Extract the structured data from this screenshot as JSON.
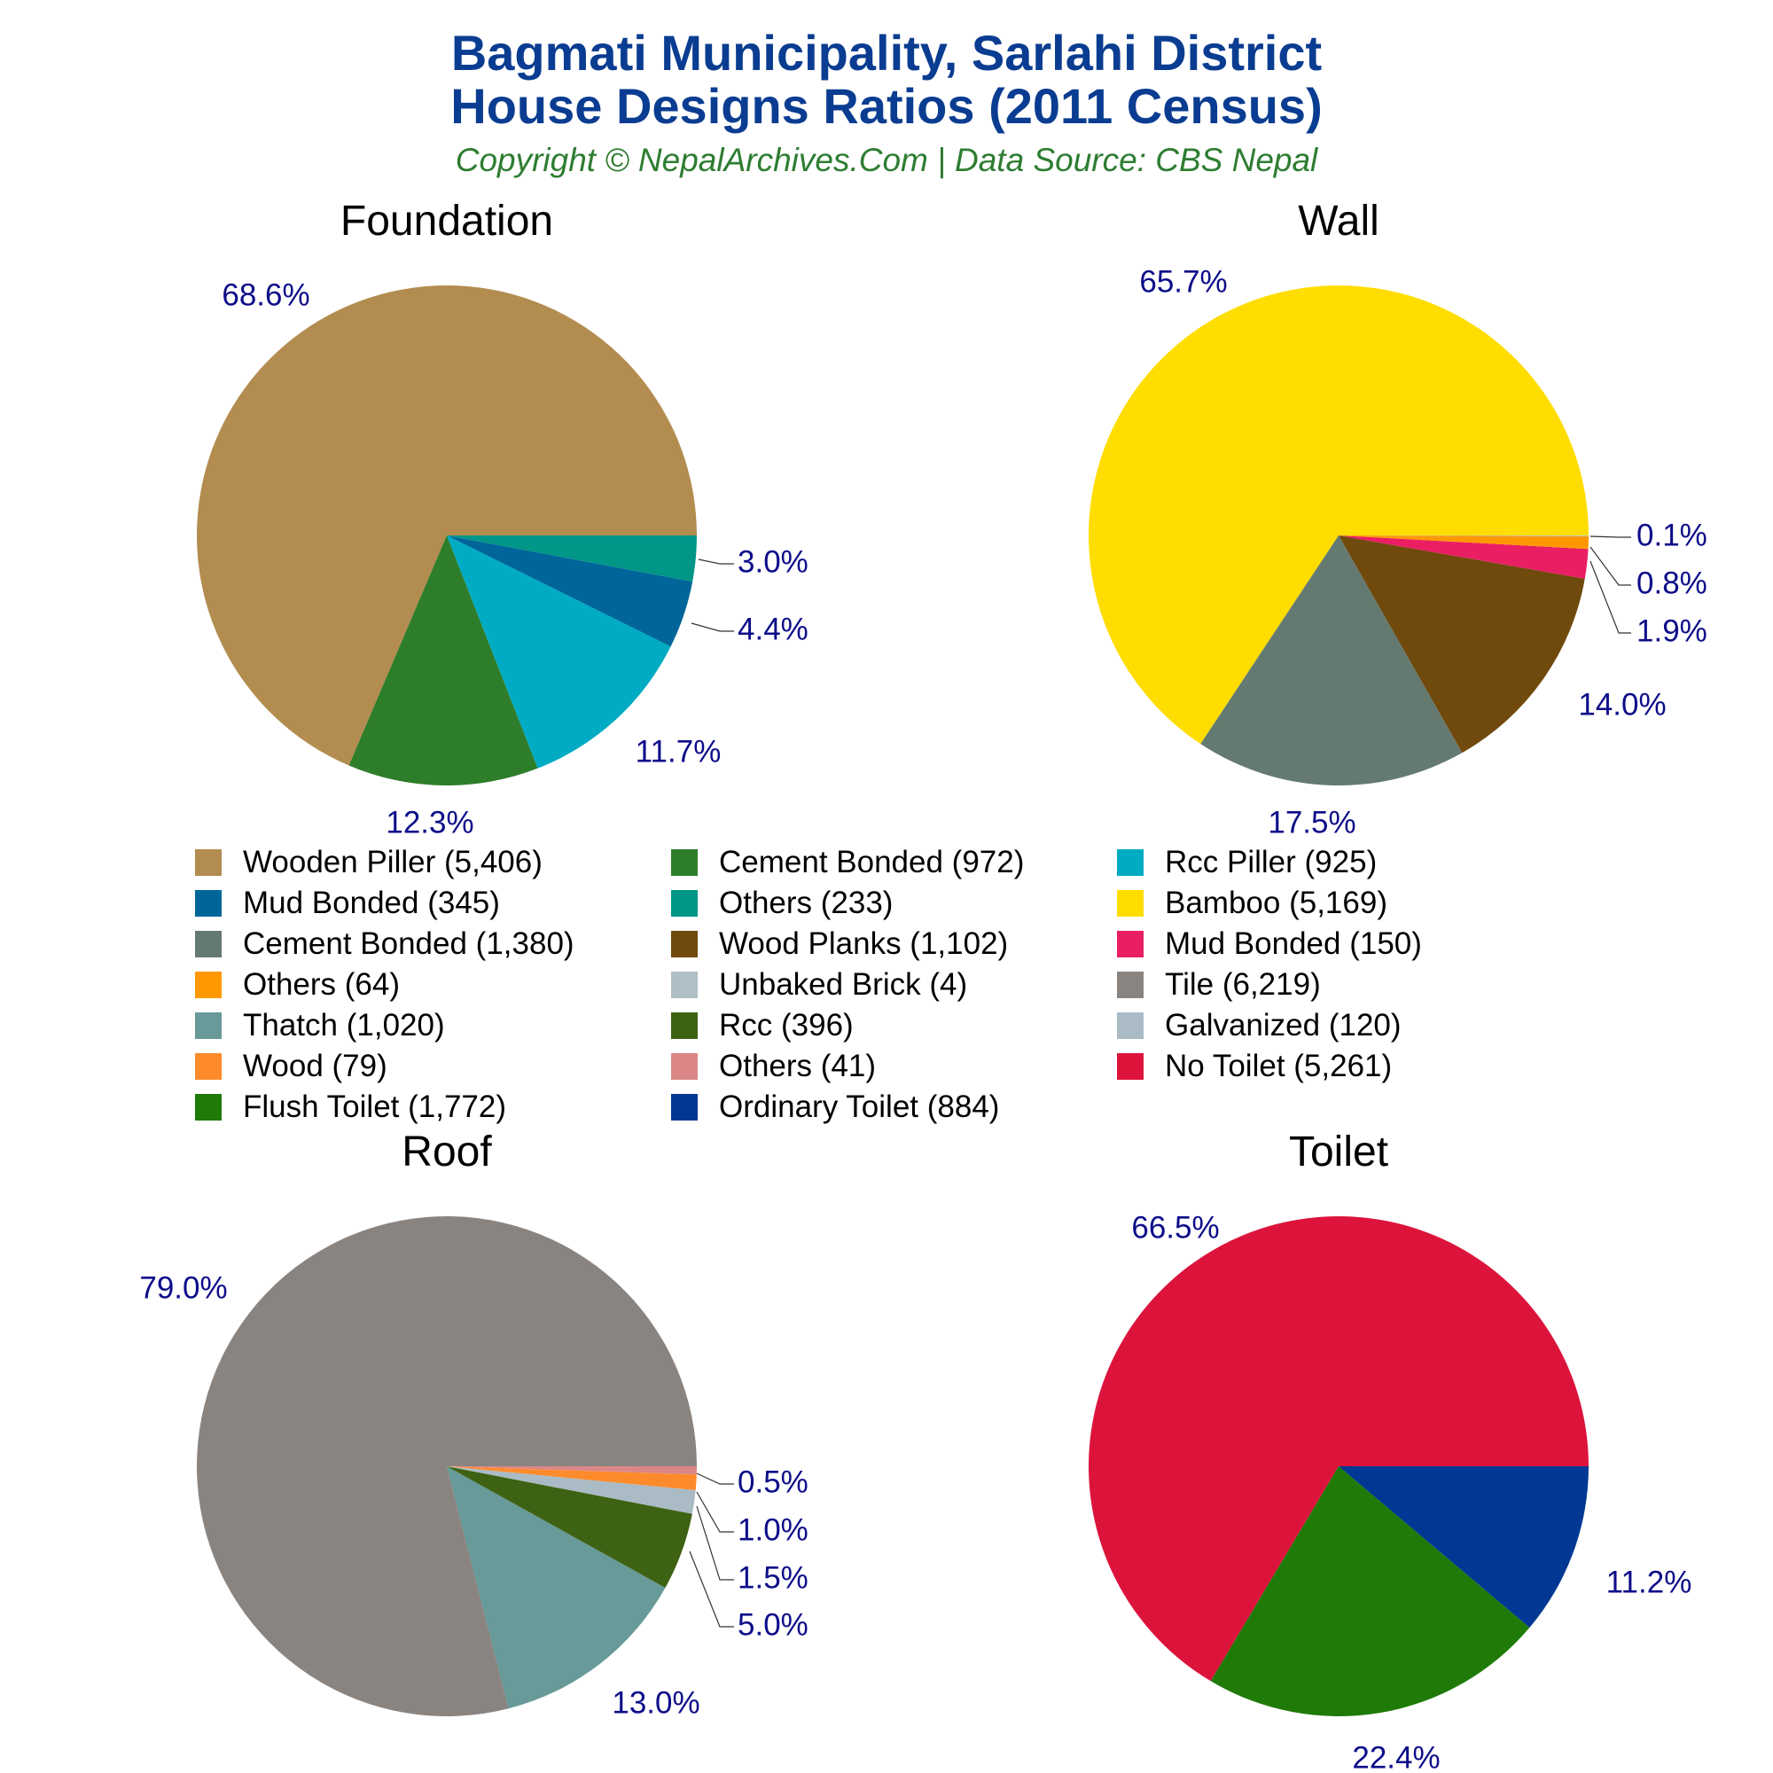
{
  "header": {
    "title_line1": "Bagmati Municipality, Sarlahi District",
    "title_line2": "House Designs Ratios (2011 Census)",
    "subtitle": "Copyright © NepalArchives.Com | Data Source: CBS Nepal",
    "title_color": "#0a3d91",
    "subtitle_color": "#2e7d32"
  },
  "label_color": "#0d0d8a",
  "chart_data": [
    {
      "type": "pie",
      "title": "Foundation",
      "slices": [
        {
          "label": "Wooden Piller",
          "value": 5406,
          "pct": "68.6%",
          "color": "#b38c50"
        },
        {
          "label": "Cement Bonded",
          "value": 972,
          "pct": "12.3%",
          "color": "#2e7d2a"
        },
        {
          "label": "Rcc Piller",
          "value": 925,
          "pct": "11.7%",
          "color": "#00abc3"
        },
        {
          "label": "Mud Bonded",
          "value": 345,
          "pct": "4.4%",
          "color": "#006699"
        },
        {
          "label": "Others",
          "value": 233,
          "pct": "3.0%",
          "color": "#009688"
        }
      ]
    },
    {
      "type": "pie",
      "title": "Wall",
      "slices": [
        {
          "label": "Bamboo",
          "value": 5169,
          "pct": "65.7%",
          "color": "#ffdd00"
        },
        {
          "label": "Cement Bonded",
          "value": 1380,
          "pct": "17.5%",
          "color": "#647a71"
        },
        {
          "label": "Wood Planks",
          "value": 1102,
          "pct": "14.0%",
          "color": "#70490c"
        },
        {
          "label": "Mud Bonded",
          "value": 150,
          "pct": "1.9%",
          "color": "#e91e63"
        },
        {
          "label": "Others",
          "value": 64,
          "pct": "0.8%",
          "color": "#ff9800"
        },
        {
          "label": "Unbaked Brick",
          "value": 4,
          "pct": "0.1%",
          "color": "#b0bec5"
        }
      ]
    },
    {
      "type": "pie",
      "title": "Roof",
      "slices": [
        {
          "label": "Tile",
          "value": 6219,
          "pct": "79.0%",
          "color": "#8a8480"
        },
        {
          "label": "Thatch",
          "value": 1020,
          "pct": "13.0%",
          "color": "#679a98"
        },
        {
          "label": "Rcc",
          "value": 396,
          "pct": "5.0%",
          "color": "#3e6213"
        },
        {
          "label": "Galvanized",
          "value": 120,
          "pct": "1.5%",
          "color": "#aabbc5"
        },
        {
          "label": "Wood",
          "value": 79,
          "pct": "1.0%",
          "color": "#fd8b2c"
        },
        {
          "label": "Others",
          "value": 41,
          "pct": "0.5%",
          "color": "#dc8787"
        }
      ]
    },
    {
      "type": "pie",
      "title": "Toilet",
      "slices": [
        {
          "label": "No Toilet",
          "value": 5261,
          "pct": "66.5%",
          "color": "#dc143c"
        },
        {
          "label": "Flush Toilet",
          "value": 1772,
          "pct": "22.4%",
          "color": "#1f7a08"
        },
        {
          "label": "Ordinary Toilet",
          "value": 884,
          "pct": "11.2%",
          "color": "#003893"
        }
      ]
    }
  ],
  "legend": [
    {
      "text": "Wooden Piller (5,406)",
      "color": "#b38c50"
    },
    {
      "text": "Cement Bonded (972)",
      "color": "#2e7d2a"
    },
    {
      "text": "Rcc Piller (925)",
      "color": "#00abc3"
    },
    {
      "text": "Mud Bonded (345)",
      "color": "#006699"
    },
    {
      "text": "Others (233)",
      "color": "#009688"
    },
    {
      "text": "Bamboo (5,169)",
      "color": "#ffdd00"
    },
    {
      "text": "Cement Bonded (1,380)",
      "color": "#647a71"
    },
    {
      "text": "Wood Planks (1,102)",
      "color": "#70490c"
    },
    {
      "text": "Mud Bonded (150)",
      "color": "#e91e63"
    },
    {
      "text": "Others (64)",
      "color": "#ff9800"
    },
    {
      "text": "Unbaked Brick (4)",
      "color": "#b0bec5"
    },
    {
      "text": "Tile (6,219)",
      "color": "#8a8480"
    },
    {
      "text": "Thatch (1,020)",
      "color": "#679a98"
    },
    {
      "text": "Rcc (396)",
      "color": "#3e6213"
    },
    {
      "text": "Galvanized (120)",
      "color": "#aabbc5"
    },
    {
      "text": "Wood (79)",
      "color": "#fd8b2c"
    },
    {
      "text": "Others (41)",
      "color": "#dc8787"
    },
    {
      "text": "No Toilet (5,261)",
      "color": "#dc143c"
    },
    {
      "text": "Flush Toilet (1,772)",
      "color": "#1f7a08"
    },
    {
      "text": "Ordinary Toilet (884)",
      "color": "#003893"
    }
  ]
}
